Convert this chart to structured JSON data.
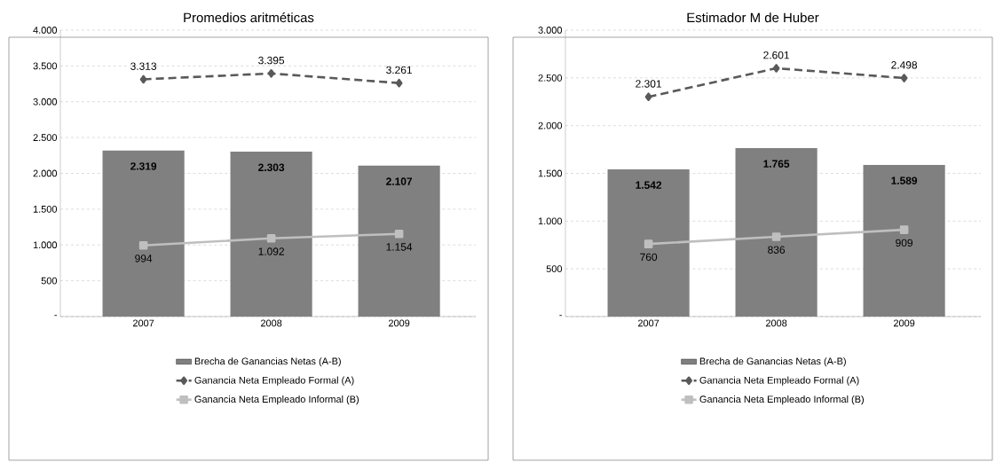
{
  "chart_data": [
    {
      "type": "bar",
      "title": "Promedios aritméticas",
      "categories": [
        "2007",
        "2008",
        "2009"
      ],
      "series": [
        {
          "name": "Brecha de Ganancias Netas (A-B)",
          "color": "#808080",
          "values": [
            2319,
            2303,
            2107
          ],
          "value_labels": [
            "2.319",
            "2.303",
            "2.107"
          ]
        },
        {
          "name": "Ganancia Neta Empleado Formal (A)",
          "type": "line",
          "color": "#595959",
          "marker": "diamond",
          "line_style": "dashed",
          "values": [
            3313,
            3395,
            3261
          ],
          "value_labels": [
            "3.313",
            "3.395",
            "3.261"
          ]
        },
        {
          "name": "Ganancia Neta Empleado Informal (B)",
          "type": "line",
          "color": "#bfbfbf",
          "marker": "square",
          "line_style": "solid",
          "values": [
            994,
            1092,
            1154
          ],
          "value_labels": [
            "994",
            "1.092",
            "1.154"
          ]
        }
      ],
      "ylim": [
        0,
        4000
      ],
      "yticks": [
        {
          "value": 0,
          "label": "-"
        },
        500,
        {
          "value": 1000,
          "label": "1.000"
        },
        {
          "value": 1500,
          "label": "1.500"
        },
        {
          "value": 2000,
          "label": "2.000"
        },
        {
          "value": 2500,
          "label": "2.500"
        },
        {
          "value": 3000,
          "label": "3.000"
        },
        {
          "value": 3500,
          "label": "3.500"
        },
        {
          "value": 4000,
          "label": "4.000"
        }
      ],
      "grid": "y",
      "legend": "bottom"
    },
    {
      "type": "bar",
      "title": "Estimador M de Huber",
      "categories": [
        "2007",
        "2008",
        "2009"
      ],
      "series": [
        {
          "name": "Brecha de Ganancias Netas (A-B)",
          "color": "#808080",
          "values": [
            1542,
            1765,
            1589
          ],
          "value_labels": [
            "1.542",
            "1.765",
            "1.589"
          ]
        },
        {
          "name": "Ganancia Neta Empleado Formal (A)",
          "type": "line",
          "color": "#595959",
          "marker": "diamond",
          "line_style": "dashed",
          "values": [
            2301,
            2601,
            2498
          ],
          "value_labels": [
            "2.301",
            "2.601",
            "2.498"
          ]
        },
        {
          "name": "Ganancia Neta Empleado Informal (B)",
          "type": "line",
          "color": "#bfbfbf",
          "marker": "square",
          "line_style": "solid",
          "values": [
            760,
            836,
            909
          ],
          "value_labels": [
            "760",
            "836",
            "909"
          ]
        }
      ],
      "ylim": [
        0,
        3000
      ],
      "yticks": [
        {
          "value": 0,
          "label": "-"
        },
        500,
        {
          "value": 1000,
          "label": "1.000"
        },
        {
          "value": 1500,
          "label": "1.500"
        },
        {
          "value": 2000,
          "label": "2.000"
        },
        {
          "value": 2500,
          "label": "2.500"
        },
        {
          "value": 3000,
          "label": "3.000"
        }
      ],
      "grid": "y",
      "legend": "bottom"
    }
  ]
}
